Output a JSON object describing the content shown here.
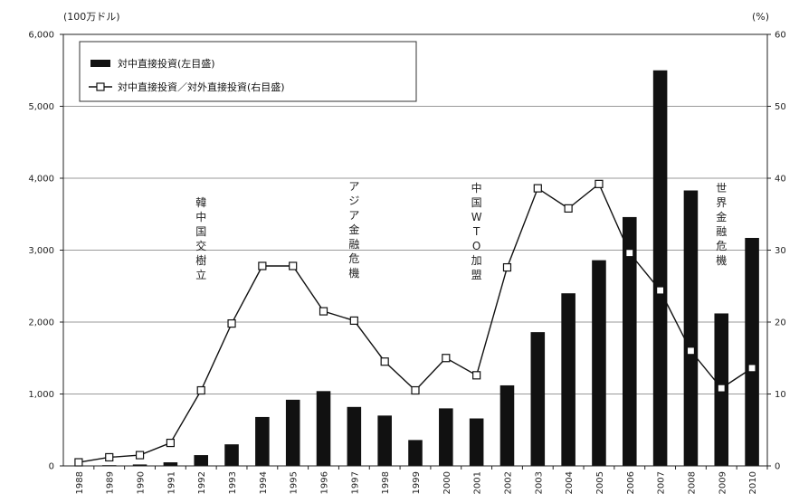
{
  "chart_data": {
    "type": "bar",
    "title": "",
    "left_axis": {
      "unit_label": "(100万ドル)",
      "ylim": [
        0,
        6000
      ],
      "ticks": [
        0,
        1000,
        2000,
        3000,
        4000,
        5000,
        6000
      ],
      "tick_labels": [
        "0",
        "1,000",
        "2,000",
        "3,000",
        "4,000",
        "5,000",
        "6,000"
      ]
    },
    "right_axis": {
      "unit_label": "(%)",
      "ylim": [
        0,
        60
      ],
      "ticks": [
        0,
        10,
        20,
        30,
        40,
        50,
        60
      ],
      "tick_labels": [
        "0",
        "10",
        "20",
        "30",
        "40",
        "50",
        "60"
      ]
    },
    "grid": true,
    "legend_position": "top-left",
    "categories": [
      "1988",
      "1989",
      "1990",
      "1991",
      "1992",
      "1993",
      "1994",
      "1995",
      "1996",
      "1997",
      "1998",
      "1999",
      "2000",
      "2001",
      "2002",
      "2003",
      "2004",
      "2005",
      "2006",
      "2007",
      "2008",
      "2009",
      "2010"
    ],
    "series": [
      {
        "name": "対中直接投資(左目盛)",
        "type": "bar",
        "axis": "left",
        "color": "#111111",
        "values": [
          0,
          10,
          20,
          50,
          150,
          300,
          680,
          920,
          1040,
          820,
          700,
          360,
          800,
          660,
          1120,
          1860,
          2400,
          2860,
          3460,
          5500,
          3830,
          2120,
          3170
        ]
      },
      {
        "name": "対中直接投資／対外直接投資(右目盛)",
        "type": "line",
        "axis": "right",
        "color": "#111111",
        "values": [
          0.5,
          1.2,
          1.5,
          3.2,
          10.5,
          19.8,
          27.8,
          27.8,
          21.5,
          20.2,
          14.5,
          10.5,
          15.0,
          12.6,
          27.6,
          38.6,
          35.8,
          39.2,
          29.6,
          24.4,
          16.0,
          10.8,
          13.6
        ]
      }
    ],
    "annotations": [
      {
        "text": "韓中国交樹立",
        "at": "1992"
      },
      {
        "text": "アジア金融危機",
        "at": "1997"
      },
      {
        "text": "中国WTO加盟",
        "at": "2001"
      },
      {
        "text": "世界金融危機",
        "at": "2009"
      }
    ]
  }
}
